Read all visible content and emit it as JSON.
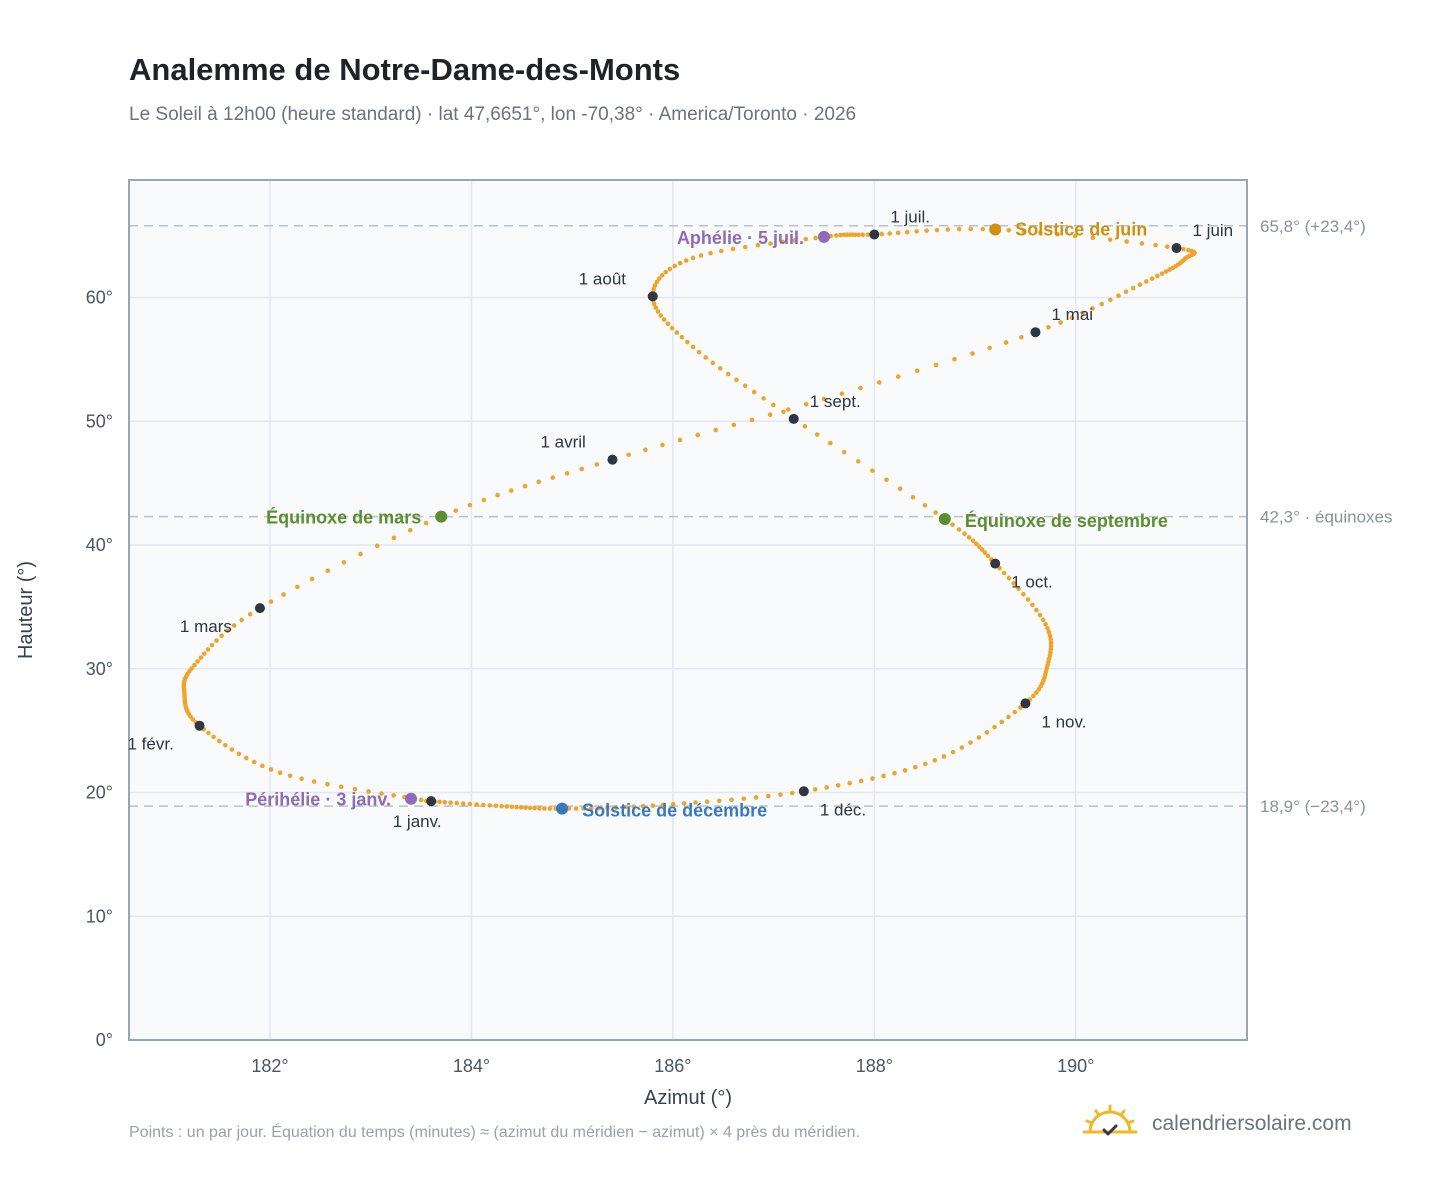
{
  "chart_data": {
    "type": "scatter",
    "title": "Analemme de Notre-Dame-des-Monts",
    "subtitle": "Le Soleil à 12h00 (heure standard) · lat 47,6651°, lon -70,38° · America/Toronto · 2026",
    "xlabel": "Azimut (°)",
    "ylabel": "Hauteur (°)",
    "xlim": [
      180.6,
      191.7
    ],
    "ylim": [
      0,
      69.5
    ],
    "x_ticks": [
      182,
      184,
      186,
      188,
      190
    ],
    "x_tick_labels": [
      "182°",
      "184°",
      "186°",
      "188°",
      "190°"
    ],
    "y_ticks": [
      0,
      10,
      20,
      30,
      40,
      50,
      60
    ],
    "y_tick_labels": [
      "0°",
      "10°",
      "20°",
      "30°",
      "40°",
      "50°",
      "60°"
    ],
    "grid": true,
    "reference_lines": [
      {
        "y": 65.8,
        "label": "65,8° (+23,4°)"
      },
      {
        "y": 42.3,
        "label": "42,3° · équinoxes"
      },
      {
        "y": 18.9,
        "label": "18,9° (−23,4°)"
      }
    ],
    "curve_anchors": [
      {
        "x": 183.5,
        "y": 19.4
      },
      {
        "x": 182.1,
        "y": 21.6
      },
      {
        "x": 181.3,
        "y": 25.4
      },
      {
        "x": 181.15,
        "y": 28.0
      },
      {
        "x": 181.25,
        "y": 30.3
      },
      {
        "x": 181.9,
        "y": 34.9
      },
      {
        "x": 183.7,
        "y": 42.3
      },
      {
        "x": 185.4,
        "y": 46.9
      },
      {
        "x": 187.5,
        "y": 51.8
      },
      {
        "x": 189.6,
        "y": 57.2
      },
      {
        "x": 190.7,
        "y": 61.3
      },
      {
        "x": 191.08,
        "y": 63.1
      },
      {
        "x": 191.0,
        "y": 64.0
      },
      {
        "x": 189.2,
        "y": 65.5
      },
      {
        "x": 188.0,
        "y": 65.1
      },
      {
        "x": 187.5,
        "y": 64.9
      },
      {
        "x": 186.2,
        "y": 63.2
      },
      {
        "x": 185.8,
        "y": 60.1
      },
      {
        "x": 186.2,
        "y": 56.0
      },
      {
        "x": 187.2,
        "y": 50.2
      },
      {
        "x": 188.7,
        "y": 42.1
      },
      {
        "x": 189.2,
        "y": 38.5
      },
      {
        "x": 189.7,
        "y": 33.6
      },
      {
        "x": 189.72,
        "y": 30.3
      },
      {
        "x": 189.5,
        "y": 27.2
      },
      {
        "x": 188.6,
        "y": 22.6
      },
      {
        "x": 187.3,
        "y": 20.1
      },
      {
        "x": 185.9,
        "y": 19.0
      },
      {
        "x": 184.9,
        "y": 18.7
      },
      {
        "x": 184.3,
        "y": 18.9
      },
      {
        "x": 183.6,
        "y": 19.3
      }
    ],
    "month_markers": [
      {
        "label": "1 janv.",
        "x": 183.6,
        "y": 19.3
      },
      {
        "label": "1 févr.",
        "x": 181.3,
        "y": 25.4
      },
      {
        "label": "1 mars",
        "x": 181.9,
        "y": 34.9
      },
      {
        "label": "1 avril",
        "x": 185.4,
        "y": 46.9
      },
      {
        "label": "1 mai",
        "x": 189.6,
        "y": 57.2
      },
      {
        "label": "1 juin",
        "x": 191.0,
        "y": 64.0
      },
      {
        "label": "1 juil.",
        "x": 188.0,
        "y": 65.1
      },
      {
        "label": "1 août",
        "x": 185.8,
        "y": 60.1
      },
      {
        "label": "1 sept.",
        "x": 187.2,
        "y": 50.2
      },
      {
        "label": "1 oct.",
        "x": 189.2,
        "y": 38.5
      },
      {
        "label": "1 nov.",
        "x": 189.5,
        "y": 27.2
      },
      {
        "label": "1 déc.",
        "x": 187.3,
        "y": 20.1
      }
    ],
    "events": [
      {
        "label": "Solstice de juin",
        "x": 189.2,
        "y": 65.5,
        "color": "#d4900d"
      },
      {
        "label": "Aphélie · 5 juil.",
        "x": 187.5,
        "y": 64.9,
        "color": "#8e6bb8"
      },
      {
        "label": "Équinoxe de mars",
        "x": 183.7,
        "y": 42.3,
        "color": "#5b8f2e"
      },
      {
        "label": "Équinoxe de septembre",
        "x": 188.7,
        "y": 42.1,
        "color": "#5b8f2e"
      },
      {
        "label": "Périhélie · 3 janv.",
        "x": 183.4,
        "y": 19.5,
        "color": "#8e6bb8"
      },
      {
        "label": "Solstice de décembre",
        "x": 184.9,
        "y": 18.7,
        "color": "#3a78bd"
      }
    ],
    "colors": {
      "curve": "#f0a42a",
      "month_marker": "#2f3640"
    }
  },
  "footer": {
    "note": "Points : un par jour. Équation du temps (minutes) ≈ (azimut du méridien − azimut) × 4 près du méridien.",
    "brand": "calendriersolaire.com"
  }
}
